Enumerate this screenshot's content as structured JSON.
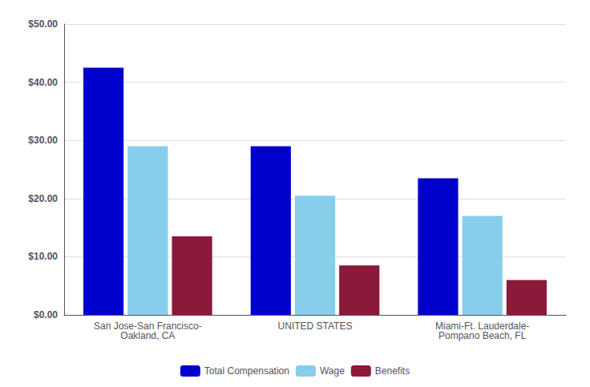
{
  "chart_data": {
    "type": "bar",
    "categories": [
      "San Jose-San Francisco-\nOakland, CA",
      "UNITED STATES",
      "Miami-Ft. Lauderdale-\nPompano Beach, FL"
    ],
    "series": [
      {
        "name": "Total Compensation",
        "color": "#0000CC",
        "values": [
          42.5,
          29.0,
          23.5
        ]
      },
      {
        "name": "Wage",
        "color": "#87CEEB",
        "values": [
          29.0,
          20.5,
          17.0
        ]
      },
      {
        "name": "Benefits",
        "color": "#8B1A3A",
        "values": [
          13.5,
          8.5,
          6.0
        ]
      }
    ],
    "ylim": [
      0,
      50
    ],
    "yticks": [
      {
        "value": 0,
        "label": "$0.00"
      },
      {
        "value": 10,
        "label": "$10.00"
      },
      {
        "value": 20,
        "label": "$20.00"
      },
      {
        "value": 30,
        "label": "$30.00"
      },
      {
        "value": 40,
        "label": "$40.00"
      },
      {
        "value": 50,
        "label": "$50.00"
      }
    ],
    "grid": true,
    "legend": "bottom"
  }
}
